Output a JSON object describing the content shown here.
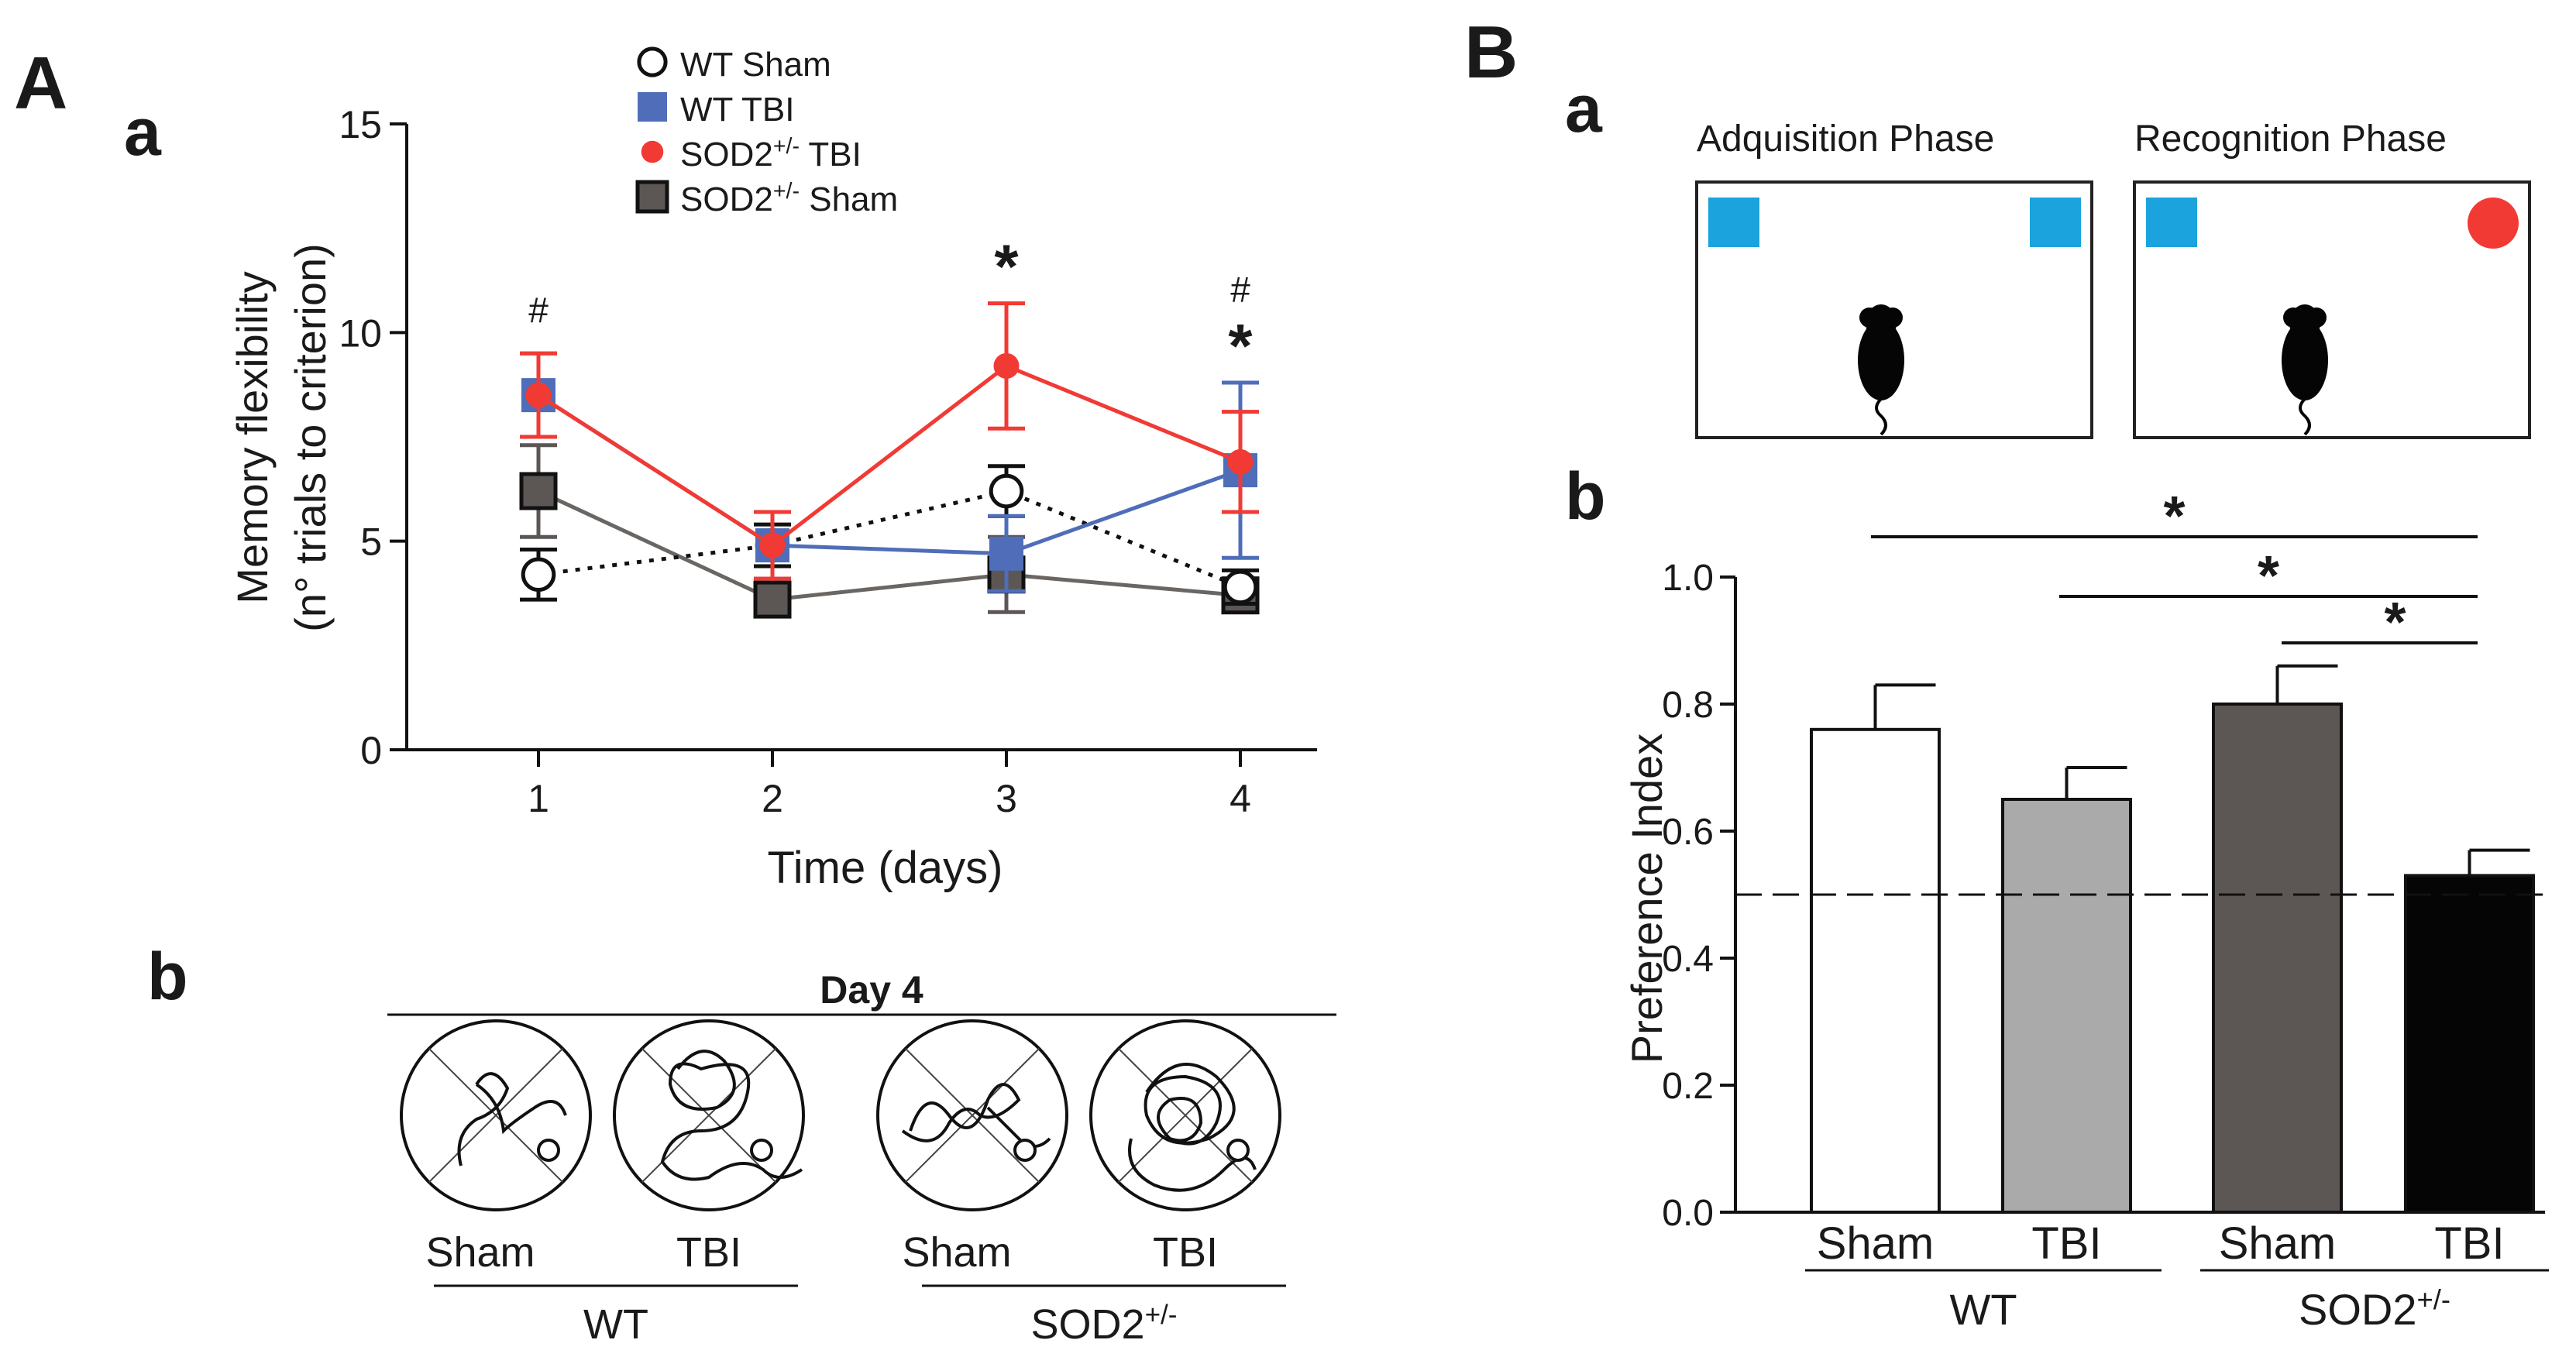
{
  "panel_labels": {
    "A": "A",
    "A_a": "a",
    "A_b": "b",
    "B": "B",
    "B_a": "a",
    "B_b": "b"
  },
  "colors": {
    "wt_tbi": "#4f6db8",
    "sod2_tbi": "#f23a34",
    "sod2_sham": "#5c5755",
    "object_blue": "#1aa3dc",
    "object_red": "#f23a34"
  },
  "chart_data": [
    {
      "id": "memory-flexibility",
      "type": "line",
      "title": "",
      "xlabel": "Time (days)",
      "ylabel_line1": "Memory flexibility",
      "ylabel_line2": "(n° trials to criterion)",
      "x": [
        1,
        2,
        3,
        4
      ],
      "x_tick_labels": [
        "1",
        "2",
        "3",
        "4"
      ],
      "ylim": [
        0,
        15
      ],
      "y_ticks": [
        0,
        5,
        10,
        15
      ],
      "y_tick_labels": [
        "0",
        "5",
        "10",
        "15"
      ],
      "legend_position": "top",
      "series": [
        {
          "key": "wt_sham",
          "name": "WT Sham",
          "values": [
            4.2,
            4.9,
            6.2,
            3.9
          ],
          "errors": [
            0.6,
            0.5,
            0.6,
            0.4
          ]
        },
        {
          "key": "wt_tbi",
          "name": "WT TBI",
          "values": [
            8.5,
            4.9,
            4.7,
            6.7
          ],
          "errors": [
            1.0,
            0.8,
            0.9,
            2.1
          ]
        },
        {
          "key": "sod2_tbi",
          "name": "SOD2",
          "name_sup": "+/-",
          "name_suffix": " TBI",
          "values": [
            8.5,
            4.9,
            9.2,
            6.9
          ],
          "errors": [
            1.0,
            0.8,
            1.5,
            1.2
          ]
        },
        {
          "key": "sod2_sham",
          "name": "SOD2",
          "name_sup": "+/-",
          "name_suffix": " Sham",
          "values": [
            6.2,
            3.6,
            4.2,
            3.7
          ],
          "errors": [
            1.1,
            0.3,
            0.9,
            0.4
          ]
        }
      ],
      "annotations": [
        {
          "x": 1,
          "symbols": [
            "#"
          ]
        },
        {
          "x": 3,
          "symbols": [
            "*"
          ]
        },
        {
          "x": 4,
          "symbols": [
            "#",
            "*"
          ]
        }
      ]
    },
    {
      "id": "preference-index",
      "type": "bar",
      "ylabel": "Preference Index",
      "ylim": [
        0,
        1.0
      ],
      "y_ticks": [
        0,
        0.2,
        0.4,
        0.6,
        0.8,
        1.0
      ],
      "y_tick_labels": [
        "0.0",
        "0.2",
        "0.4",
        "0.6",
        "0.8",
        "1.0"
      ],
      "chance_level": 0.5,
      "categories": [
        "Sham",
        "TBI",
        "Sham",
        "TBI"
      ],
      "values": [
        0.76,
        0.65,
        0.8,
        0.53
      ],
      "errors": [
        0.07,
        0.05,
        0.06,
        0.04
      ],
      "bar_colors": [
        "#ffffff",
        "#aaaaaa",
        "#5c5755",
        "#050505"
      ],
      "groups": [
        {
          "label": "WT",
          "sup": ""
        },
        {
          "label": "SOD2",
          "sup": "+/-"
        }
      ],
      "significance": [
        {
          "from": 0,
          "to": 3,
          "symbol": "*"
        },
        {
          "from": 1,
          "to": 3,
          "symbol": "*"
        },
        {
          "from": 2,
          "to": 3,
          "symbol": "*"
        }
      ]
    }
  ],
  "track_panel": {
    "title": "Day 4",
    "circles": [
      {
        "label": "Sham",
        "group": 0
      },
      {
        "label": "TBI",
        "group": 0
      },
      {
        "label": "Sham",
        "group": 1
      },
      {
        "label": "TBI",
        "group": 1
      }
    ],
    "groups": [
      {
        "label": "WT",
        "sup": ""
      },
      {
        "label": "SOD2",
        "sup": "+/-"
      }
    ]
  },
  "phases": [
    {
      "title": "Adquisition Phase",
      "left_object": "square",
      "right_object": "square"
    },
    {
      "title": "Recognition Phase",
      "left_object": "square",
      "right_object": "circle"
    }
  ]
}
